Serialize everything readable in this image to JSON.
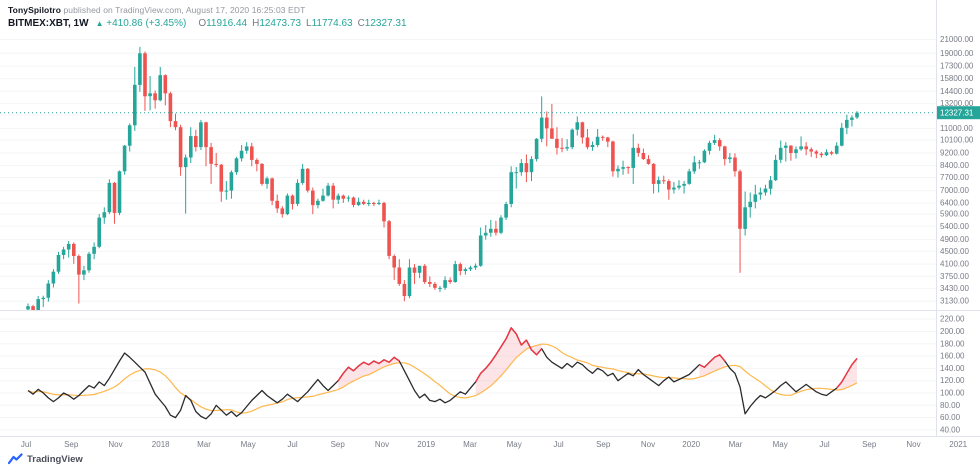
{
  "meta": {
    "attribution_user": "TonySpilotro",
    "attribution_rest": " published on TradingView.com, August 17, 2020 16:25:03 EDT"
  },
  "header": {
    "symbol": "BITMEX:XBT, 1W",
    "change_arrow": "▲",
    "change": "+410.86 (+3.45%)",
    "ohlc": {
      "o_label": "O",
      "o": "11916.44",
      "h_label": "H",
      "h": "12473.73",
      "l_label": "L",
      "l": "11774.63",
      "c_label": "C",
      "c": "12327.31"
    }
  },
  "footer": {
    "brand": "TradingView"
  },
  "colors": {
    "up": "#26a69a",
    "down": "#ef5350",
    "line": "#2a2b2e",
    "ma": "#ffb74d",
    "red": "#f23645",
    "red_fill": "rgba(242,54,69,0.13)",
    "grid": "#f4f5f7",
    "border": "#e0e3eb",
    "axis_text": "#787b86",
    "brand_blue": "#2962ff"
  },
  "price_axis": {
    "tag": "12327.31",
    "labels": [
      "21000.00",
      "19000.00",
      "17300.00",
      "15800.00",
      "14400.00",
      "13200.00",
      "12100.00",
      "11000.00",
      "10100.00",
      "9200.00",
      "8400.00",
      "7700.00",
      "7000.00",
      "6400.00",
      "5900.00",
      "5400.00",
      "4900.00",
      "4500.00",
      "4100.00",
      "3750.00",
      "3430.00",
      "3130.00"
    ]
  },
  "indicator_axis": {
    "labels": [
      "220.00",
      "200.00",
      "180.00",
      "160.00",
      "140.00",
      "120.00",
      "100.00",
      "80.00",
      "60.00",
      "40.00"
    ]
  },
  "time_axis": {
    "labels": [
      {
        "text": "Jul",
        "week": -0.4
      },
      {
        "text": "Sep",
        "week": 8.5
      },
      {
        "text": "Nov",
        "week": 17.2
      },
      {
        "text": "2018",
        "week": 26.1
      },
      {
        "text": "Mar",
        "week": 34.6
      },
      {
        "text": "May",
        "week": 43.3
      },
      {
        "text": "Jul",
        "week": 52.0
      },
      {
        "text": "Sep",
        "week": 60.9
      },
      {
        "text": "Nov",
        "week": 69.6
      },
      {
        "text": "2019",
        "week": 78.3
      },
      {
        "text": "Mar",
        "week": 86.9
      },
      {
        "text": "May",
        "week": 95.6
      },
      {
        "text": "Jul",
        "week": 104.3
      },
      {
        "text": "Sep",
        "week": 113.1
      },
      {
        "text": "Nov",
        "week": 121.9
      },
      {
        "text": "2020",
        "week": 130.4
      },
      {
        "text": "Mar",
        "week": 139.1
      },
      {
        "text": "May",
        "week": 147.9
      },
      {
        "text": "Jul",
        "week": 156.6
      },
      {
        "text": "Sep",
        "week": 165.4
      },
      {
        "text": "Nov",
        "week": 174.1
      },
      {
        "text": "2021",
        "week": 182.9
      }
    ]
  },
  "chart_data": {
    "type": "candlestick",
    "symbol": "BITMEX:XBT",
    "interval": "1W",
    "scale": "log",
    "price_range": [
      2980,
      22500
    ],
    "last_close": 12327.31,
    "candles": [
      [
        2950,
        3080,
        2700,
        3020
      ],
      [
        3020,
        3050,
        2250,
        2480
      ],
      [
        2480,
        3250,
        2400,
        3180
      ],
      [
        3180,
        3260,
        3000,
        3210
      ],
      [
        3210,
        3650,
        3120,
        3560
      ],
      [
        3560,
        3950,
        3460,
        3880
      ],
      [
        3880,
        4480,
        3820,
        4380
      ],
      [
        4380,
        4650,
        4250,
        4560
      ],
      [
        4560,
        4850,
        4300,
        4750
      ],
      [
        4750,
        4800,
        4110,
        4350
      ],
      [
        4350,
        4400,
        3080,
        3800
      ],
      [
        3800,
        4050,
        3650,
        3920
      ],
      [
        3920,
        4480,
        3850,
        4420
      ],
      [
        4420,
        4800,
        4250,
        4650
      ],
      [
        4650,
        5900,
        4600,
        5750
      ],
      [
        5750,
        6200,
        5500,
        5980
      ],
      [
        5980,
        7600,
        5900,
        7400
      ],
      [
        7400,
        7450,
        5500,
        5950
      ],
      [
        5950,
        8100,
        5850,
        8050
      ],
      [
        8050,
        9750,
        7850,
        9700
      ],
      [
        9700,
        11400,
        9300,
        11250
      ],
      [
        11250,
        17200,
        10800,
        15100
      ],
      [
        15100,
        19900,
        14350,
        19000
      ],
      [
        19000,
        19250,
        12500,
        13900
      ],
      [
        13900,
        16100,
        12550,
        14200
      ],
      [
        14200,
        14500,
        12700,
        13500
      ],
      [
        13500,
        17200,
        13400,
        16200
      ],
      [
        16200,
        16300,
        13000,
        14200
      ],
      [
        14200,
        14350,
        11100,
        11600
      ],
      [
        11600,
        12250,
        10850,
        11100
      ],
      [
        11100,
        11300,
        7800,
        8300
      ],
      [
        8300,
        9100,
        5920,
        8900
      ],
      [
        8900,
        11100,
        8550,
        10400
      ],
      [
        10400,
        10900,
        9300,
        9600
      ],
      [
        9600,
        11700,
        9400,
        11500
      ],
      [
        11500,
        11550,
        8350,
        9600
      ],
      [
        9600,
        9900,
        7350,
        8500
      ],
      [
        8500,
        9200,
        8300,
        8450
      ],
      [
        8450,
        8500,
        6450,
        6950
      ],
      [
        6950,
        7500,
        6550,
        7000
      ],
      [
        7000,
        8100,
        6600,
        8000
      ],
      [
        8000,
        8950,
        7850,
        8850
      ],
      [
        8850,
        9750,
        8650,
        9350
      ],
      [
        9350,
        9950,
        9150,
        9650
      ],
      [
        9650,
        9900,
        8350,
        8750
      ],
      [
        8750,
        8850,
        8050,
        8500
      ],
      [
        8500,
        8550,
        7250,
        7350
      ],
      [
        7350,
        7750,
        7100,
        7650
      ],
      [
        7650,
        7700,
        6300,
        6500
      ],
      [
        6500,
        6800,
        5950,
        6150
      ],
      [
        6150,
        6250,
        5750,
        5900
      ],
      [
        5900,
        6850,
        5850,
        6750
      ],
      [
        6750,
        6800,
        6100,
        6350
      ],
      [
        6350,
        7600,
        6250,
        7400
      ],
      [
        7400,
        8500,
        7300,
        8200
      ],
      [
        8200,
        8250,
        6900,
        7000
      ],
      [
        7000,
        7150,
        5900,
        6300
      ],
      [
        6300,
        6600,
        6150,
        6500
      ],
      [
        6500,
        7100,
        6450,
        6750
      ],
      [
        6750,
        7400,
        6700,
        7250
      ],
      [
        7250,
        7400,
        6150,
        6550
      ],
      [
        6550,
        6850,
        6350,
        6750
      ],
      [
        6750,
        6800,
        6400,
        6600
      ],
      [
        6600,
        6750,
        6450,
        6650
      ],
      [
        6650,
        6700,
        6200,
        6300
      ],
      [
        6300,
        6650,
        6250,
        6450
      ],
      [
        6450,
        6550,
        6300,
        6350
      ],
      [
        6350,
        6550,
        6250,
        6400
      ],
      [
        6400,
        6450,
        6250,
        6350
      ],
      [
        6350,
        6550,
        6300,
        6400
      ],
      [
        6400,
        6450,
        5350,
        5600
      ],
      [
        5600,
        5650,
        4250,
        4350
      ],
      [
        4350,
        4400,
        3650,
        4000
      ],
      [
        4000,
        4250,
        3500,
        3550
      ],
      [
        3550,
        3650,
        3130,
        3250
      ],
      [
        3250,
        4250,
        3200,
        4000
      ],
      [
        4000,
        4100,
        3550,
        3850
      ],
      [
        3850,
        4050,
        3700,
        4050
      ],
      [
        4050,
        4100,
        3550,
        3600
      ],
      [
        3600,
        3750,
        3470,
        3550
      ],
      [
        3550,
        3600,
        3400,
        3450
      ],
      [
        3450,
        3500,
        3350,
        3450
      ],
      [
        3450,
        3750,
        3400,
        3650
      ],
      [
        3650,
        3720,
        3550,
        3600
      ],
      [
        3600,
        4200,
        3580,
        4100
      ],
      [
        4100,
        4150,
        3780,
        3900
      ],
      [
        3900,
        4000,
        3800,
        3950
      ],
      [
        3950,
        4050,
        3900,
        4000
      ],
      [
        4000,
        4120,
        3930,
        4050
      ],
      [
        4050,
        5350,
        4020,
        5050
      ],
      [
        5050,
        5450,
        4900,
        5150
      ],
      [
        5150,
        5650,
        5000,
        5300
      ],
      [
        5300,
        5620,
        5050,
        5150
      ],
      [
        5150,
        5850,
        5100,
        5750
      ],
      [
        5750,
        6450,
        5650,
        6350
      ],
      [
        6350,
        8350,
        6200,
        8000
      ],
      [
        8000,
        8300,
        7100,
        8000
      ],
      [
        8000,
        8800,
        7800,
        8550
      ],
      [
        8550,
        9100,
        7450,
        8000
      ],
      [
        8000,
        8980,
        7500,
        8800
      ],
      [
        8800,
        10250,
        8650,
        10200
      ],
      [
        10200,
        13880,
        9950,
        11900
      ],
      [
        11900,
        12450,
        9650,
        11000
      ],
      [
        11000,
        13150,
        10550,
        10200
      ],
      [
        10200,
        11100,
        9100,
        9550
      ],
      [
        9550,
        10250,
        9250,
        9500
      ],
      [
        9500,
        10180,
        9350,
        9600
      ],
      [
        9600,
        11000,
        9450,
        10900
      ],
      [
        10900,
        12000,
        10450,
        11500
      ],
      [
        11500,
        11550,
        9850,
        10300
      ],
      [
        10300,
        10950,
        9450,
        9600
      ],
      [
        9600,
        10000,
        9350,
        9750
      ],
      [
        9750,
        10950,
        9600,
        10350
      ],
      [
        10350,
        10450,
        10050,
        10300
      ],
      [
        10300,
        10350,
        9600,
        10000
      ],
      [
        10000,
        10050,
        7750,
        8050
      ],
      [
        8050,
        8400,
        7700,
        8200
      ],
      [
        8200,
        8700,
        7850,
        8300
      ],
      [
        8300,
        8350,
        7900,
        8250
      ],
      [
        8250,
        10550,
        7350,
        9550
      ],
      [
        9550,
        9850,
        8950,
        9200
      ],
      [
        9200,
        9500,
        8750,
        8800
      ],
      [
        8800,
        9050,
        8450,
        8500
      ],
      [
        8500,
        8550,
        6850,
        7350
      ],
      [
        7350,
        7750,
        6900,
        7550
      ],
      [
        7550,
        7800,
        7350,
        7500
      ],
      [
        7500,
        7600,
        6550,
        7050
      ],
      [
        7050,
        7450,
        6850,
        7150
      ],
      [
        7150,
        7550,
        7050,
        7250
      ],
      [
        7250,
        7500,
        6850,
        7350
      ],
      [
        7350,
        8200,
        7300,
        8050
      ],
      [
        8050,
        9000,
        7900,
        8600
      ],
      [
        8600,
        8750,
        8200,
        8600
      ],
      [
        8600,
        9450,
        8550,
        9350
      ],
      [
        9350,
        10050,
        9100,
        9900
      ],
      [
        9900,
        10500,
        9750,
        10100
      ],
      [
        10100,
        10250,
        9350,
        9650
      ],
      [
        9650,
        9700,
        8400,
        8800
      ],
      [
        8800,
        9200,
        8550,
        8900
      ],
      [
        8900,
        9180,
        7750,
        8050
      ],
      [
        8050,
        8150,
        3850,
        5300
      ],
      [
        5300,
        6950,
        5050,
        6200
      ],
      [
        6200,
        6900,
        5750,
        6450
      ],
      [
        6450,
        7300,
        6150,
        6800
      ],
      [
        6800,
        7150,
        6550,
        6900
      ],
      [
        6900,
        7300,
        6750,
        7100
      ],
      [
        7100,
        7780,
        6800,
        7550
      ],
      [
        7550,
        9080,
        7500,
        8750
      ],
      [
        8750,
        10070,
        8550,
        9550
      ],
      [
        9550,
        9950,
        8650,
        9700
      ],
      [
        9700,
        9750,
        8700,
        9200
      ],
      [
        9200,
        9650,
        8830,
        9450
      ],
      [
        9450,
        10380,
        9350,
        9650
      ],
      [
        9650,
        9950,
        9050,
        9450
      ],
      [
        9450,
        9590,
        8950,
        9300
      ],
      [
        9300,
        9400,
        8850,
        9150
      ],
      [
        9150,
        9250,
        8900,
        9050
      ],
      [
        9050,
        9450,
        9000,
        9250
      ],
      [
        9250,
        9350,
        9050,
        9150
      ],
      [
        9150,
        9950,
        9100,
        9700
      ],
      [
        9700,
        11450,
        9650,
        11050
      ],
      [
        11050,
        12150,
        10550,
        11700
      ],
      [
        11700,
        12100,
        11150,
        11900
      ],
      [
        11916,
        12474,
        11775,
        12327
      ]
    ],
    "indicator": {
      "range": [
        35,
        230
      ],
      "ma_period": 10,
      "red_ranges": [
        [
          61,
          73
        ],
        [
          88,
          101
        ],
        [
          132,
          137
        ],
        [
          159,
          163
        ]
      ],
      "values": [
        104,
        98,
        106,
        100,
        92,
        86,
        92,
        100,
        96,
        90,
        96,
        104,
        112,
        108,
        118,
        112,
        124,
        138,
        152,
        165,
        158,
        150,
        142,
        134,
        116,
        98,
        88,
        78,
        64,
        60,
        72,
        96,
        88,
        70,
        62,
        58,
        66,
        80,
        72,
        64,
        70,
        62,
        68,
        78,
        88,
        96,
        104,
        96,
        90,
        84,
        90,
        98,
        92,
        86,
        94,
        102,
        112,
        122,
        112,
        104,
        112,
        120,
        132,
        142,
        136,
        144,
        150,
        146,
        152,
        148,
        154,
        150,
        158,
        152,
        136,
        120,
        104,
        92,
        98,
        88,
        86,
        90,
        84,
        88,
        95,
        102,
        98,
        108,
        118,
        132,
        140,
        150,
        162,
        175,
        188,
        206,
        196,
        178,
        186,
        170,
        162,
        172,
        158,
        150,
        145,
        140,
        148,
        142,
        150,
        146,
        138,
        132,
        140,
        136,
        128,
        132,
        120,
        126,
        132,
        128,
        138,
        130,
        124,
        118,
        112,
        120,
        126,
        118,
        122,
        126,
        130,
        138,
        146,
        142,
        150,
        158,
        162,
        152,
        140,
        132,
        110,
        66,
        78,
        88,
        96,
        92,
        98,
        104,
        112,
        118,
        110,
        102,
        108,
        114,
        108,
        102,
        98,
        96,
        102,
        108,
        118,
        132,
        146,
        156
      ]
    }
  }
}
